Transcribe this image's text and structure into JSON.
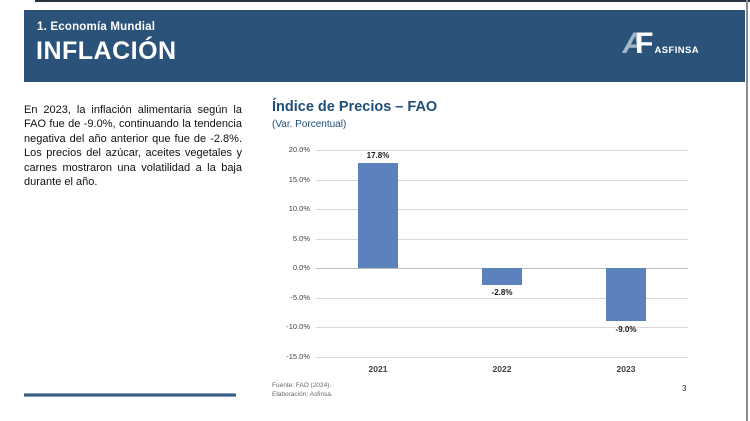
{
  "header": {
    "kicker": "1. Economía Mundial",
    "title": "INFLACIÓN",
    "background_color": "#2b5278",
    "logo": {
      "monogram_a": "A",
      "monogram_f": "F",
      "name": "ASFINSA"
    }
  },
  "body_text": {
    "paragraph": "En 2023, la inflación alimentaria según la FAO fue de -9.0%, continuando la tendencia negativa del año anterior que fue de -2.8%. Los precios del azúcar, aceites vegetales y carnes mostraron una volatilidad a la baja durante el año."
  },
  "chart_data": {
    "type": "bar",
    "title": "Índice de Precios – FAO",
    "subtitle": "(Var. Porcentual)",
    "categories": [
      "2021",
      "2022",
      "2023"
    ],
    "values": [
      17.8,
      -2.8,
      -9.0
    ],
    "data_labels": [
      "17.8%",
      "-2.8%",
      "-9.0%"
    ],
    "ylim": [
      -15,
      20
    ],
    "ytick_step": 5,
    "ytick_labels": [
      "20.0%",
      "15.0%",
      "10.0%",
      "5.0%",
      "0.0%",
      "-5.0%",
      "-10.0%",
      "-15.0%"
    ],
    "grid": true,
    "legend": false,
    "bar_color": "#5b82bc",
    "xlabel": "",
    "ylabel": ""
  },
  "footer": {
    "source_line1": "Fuente: FAO (2024).",
    "source_line2": "Elaboración: Asfinsa.",
    "page_number": "3"
  }
}
